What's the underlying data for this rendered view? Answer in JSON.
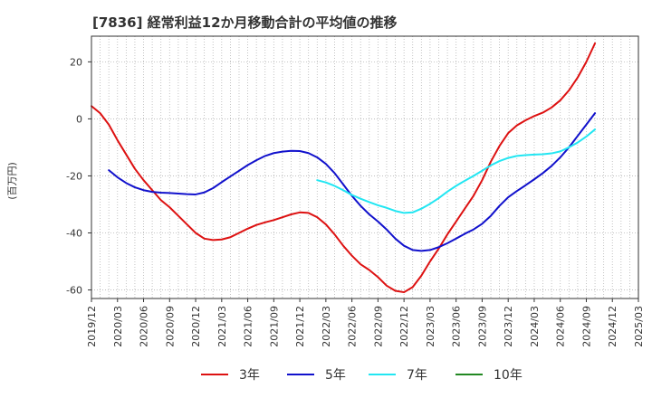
{
  "chart_data": {
    "type": "line",
    "title": "[7836]  経常利益12か月移動合計の平均値の推移",
    "ylabel": "(百万円)",
    "xlabel": "",
    "ylim": [
      -63,
      29
    ],
    "yticks": [
      20,
      0,
      -20,
      -40,
      -60
    ],
    "x_ticks": [
      "2019/12",
      "2020/03",
      "2020/06",
      "2020/09",
      "2020/12",
      "2021/03",
      "2021/06",
      "2021/09",
      "2021/12",
      "2022/03",
      "2022/06",
      "2022/09",
      "2022/12",
      "2023/03",
      "2023/06",
      "2023/09",
      "2023/12",
      "2024/03",
      "2024/06",
      "2024/09",
      "2024/12",
      "2025/03"
    ],
    "grid": true,
    "legend_position": "bottom",
    "series": [
      {
        "name": "3年",
        "color": "#dd1111",
        "points": [
          [
            "2019/12",
            4.5
          ],
          [
            "2020/01",
            2.0
          ],
          [
            "2020/02",
            -2.0
          ],
          [
            "2020/03",
            -7.5
          ],
          [
            "2020/04",
            -12.5
          ],
          [
            "2020/05",
            -17.5
          ],
          [
            "2020/06",
            -21.5
          ],
          [
            "2020/07",
            -25.0
          ],
          [
            "2020/08",
            -28.5
          ],
          [
            "2020/09",
            -31.0
          ],
          [
            "2020/10",
            -34.0
          ],
          [
            "2020/11",
            -37.0
          ],
          [
            "2020/12",
            -40.0
          ],
          [
            "2021/01",
            -42.0
          ],
          [
            "2021/02",
            -42.5
          ],
          [
            "2021/03",
            -42.3
          ],
          [
            "2021/04",
            -41.5
          ],
          [
            "2021/05",
            -40.0
          ],
          [
            "2021/06",
            -38.5
          ],
          [
            "2021/07",
            -37.2
          ],
          [
            "2021/08",
            -36.3
          ],
          [
            "2021/09",
            -35.5
          ],
          [
            "2021/10",
            -34.5
          ],
          [
            "2021/11",
            -33.5
          ],
          [
            "2021/12",
            -32.8
          ],
          [
            "2022/01",
            -33.0
          ],
          [
            "2022/02",
            -34.5
          ],
          [
            "2022/03",
            -37.0
          ],
          [
            "2022/04",
            -40.5
          ],
          [
            "2022/05",
            -44.5
          ],
          [
            "2022/06",
            -48.0
          ],
          [
            "2022/07",
            -51.0
          ],
          [
            "2022/08",
            -53.0
          ],
          [
            "2022/09",
            -55.5
          ],
          [
            "2022/10",
            -58.5
          ],
          [
            "2022/11",
            -60.3
          ],
          [
            "2022/12",
            -60.8
          ],
          [
            "2023/01",
            -59.0
          ],
          [
            "2023/02",
            -55.0
          ],
          [
            "2023/03",
            -50.0
          ],
          [
            "2023/04",
            -45.5
          ],
          [
            "2023/05",
            -40.5
          ],
          [
            "2023/06",
            -36.0
          ],
          [
            "2023/07",
            -31.5
          ],
          [
            "2023/08",
            -27.0
          ],
          [
            "2023/09",
            -21.5
          ],
          [
            "2023/10",
            -15.0
          ],
          [
            "2023/11",
            -9.5
          ],
          [
            "2023/12",
            -5.0
          ],
          [
            "2024/01",
            -2.3
          ],
          [
            "2024/02",
            -0.5
          ],
          [
            "2024/03",
            1.0
          ],
          [
            "2024/04",
            2.2
          ],
          [
            "2024/05",
            4.0
          ],
          [
            "2024/06",
            6.5
          ],
          [
            "2024/07",
            10.0
          ],
          [
            "2024/08",
            14.5
          ],
          [
            "2024/09",
            20.0
          ],
          [
            "2024/10",
            26.5
          ]
        ]
      },
      {
        "name": "5年",
        "color": "#1111cc",
        "points": [
          [
            "2020/02",
            -18.0
          ],
          [
            "2020/03",
            -20.5
          ],
          [
            "2020/04",
            -22.5
          ],
          [
            "2020/05",
            -24.0
          ],
          [
            "2020/06",
            -25.0
          ],
          [
            "2020/07",
            -25.6
          ],
          [
            "2020/08",
            -25.9
          ],
          [
            "2020/09",
            -26.0
          ],
          [
            "2020/10",
            -26.2
          ],
          [
            "2020/11",
            -26.4
          ],
          [
            "2020/12",
            -26.5
          ],
          [
            "2021/01",
            -25.8
          ],
          [
            "2021/02",
            -24.3
          ],
          [
            "2021/03",
            -22.2
          ],
          [
            "2021/04",
            -20.2
          ],
          [
            "2021/05",
            -18.2
          ],
          [
            "2021/06",
            -16.2
          ],
          [
            "2021/07",
            -14.5
          ],
          [
            "2021/08",
            -13.0
          ],
          [
            "2021/09",
            -12.0
          ],
          [
            "2021/10",
            -11.5
          ],
          [
            "2021/11",
            -11.2
          ],
          [
            "2021/12",
            -11.3
          ],
          [
            "2022/01",
            -12.0
          ],
          [
            "2022/02",
            -13.5
          ],
          [
            "2022/03",
            -15.8
          ],
          [
            "2022/04",
            -19.0
          ],
          [
            "2022/05",
            -23.0
          ],
          [
            "2022/06",
            -27.0
          ],
          [
            "2022/07",
            -30.5
          ],
          [
            "2022/08",
            -33.5
          ],
          [
            "2022/09",
            -36.0
          ],
          [
            "2022/10",
            -38.8
          ],
          [
            "2022/11",
            -42.0
          ],
          [
            "2022/12",
            -44.5
          ],
          [
            "2023/01",
            -46.0
          ],
          [
            "2023/02",
            -46.3
          ],
          [
            "2023/03",
            -46.0
          ],
          [
            "2023/04",
            -45.0
          ],
          [
            "2023/05",
            -43.6
          ],
          [
            "2023/06",
            -42.0
          ],
          [
            "2023/07",
            -40.3
          ],
          [
            "2023/08",
            -38.8
          ],
          [
            "2023/09",
            -36.8
          ],
          [
            "2023/10",
            -34.0
          ],
          [
            "2023/11",
            -30.5
          ],
          [
            "2023/12",
            -27.5
          ],
          [
            "2024/01",
            -25.3
          ],
          [
            "2024/02",
            -23.3
          ],
          [
            "2024/03",
            -21.2
          ],
          [
            "2024/04",
            -19.0
          ],
          [
            "2024/05",
            -16.5
          ],
          [
            "2024/06",
            -13.5
          ],
          [
            "2024/07",
            -10.0
          ],
          [
            "2024/08",
            -6.0
          ],
          [
            "2024/09",
            -2.0
          ],
          [
            "2024/10",
            2.0
          ]
        ]
      },
      {
        "name": "7年",
        "color": "#22e6f2",
        "points": [
          [
            "2022/02",
            -21.5
          ],
          [
            "2022/03",
            -22.3
          ],
          [
            "2022/04",
            -23.5
          ],
          [
            "2022/05",
            -25.0
          ],
          [
            "2022/06",
            -26.7
          ],
          [
            "2022/07",
            -28.0
          ],
          [
            "2022/08",
            -29.2
          ],
          [
            "2022/09",
            -30.3
          ],
          [
            "2022/10",
            -31.2
          ],
          [
            "2022/11",
            -32.3
          ],
          [
            "2022/12",
            -33.0
          ],
          [
            "2023/01",
            -32.8
          ],
          [
            "2023/02",
            -31.5
          ],
          [
            "2023/03",
            -29.8
          ],
          [
            "2023/04",
            -27.8
          ],
          [
            "2023/05",
            -25.5
          ],
          [
            "2023/06",
            -23.5
          ],
          [
            "2023/07",
            -21.7
          ],
          [
            "2023/08",
            -20.0
          ],
          [
            "2023/09",
            -18.2
          ],
          [
            "2023/10",
            -16.3
          ],
          [
            "2023/11",
            -14.8
          ],
          [
            "2023/12",
            -13.7
          ],
          [
            "2024/01",
            -13.0
          ],
          [
            "2024/02",
            -12.7
          ],
          [
            "2024/03",
            -12.5
          ],
          [
            "2024/04",
            -12.4
          ],
          [
            "2024/05",
            -12.1
          ],
          [
            "2024/06",
            -11.4
          ],
          [
            "2024/07",
            -10.0
          ],
          [
            "2024/08",
            -8.3
          ],
          [
            "2024/09",
            -6.2
          ],
          [
            "2024/10",
            -3.7
          ]
        ]
      },
      {
        "name": "10年",
        "color": "#228822",
        "points": []
      }
    ]
  }
}
